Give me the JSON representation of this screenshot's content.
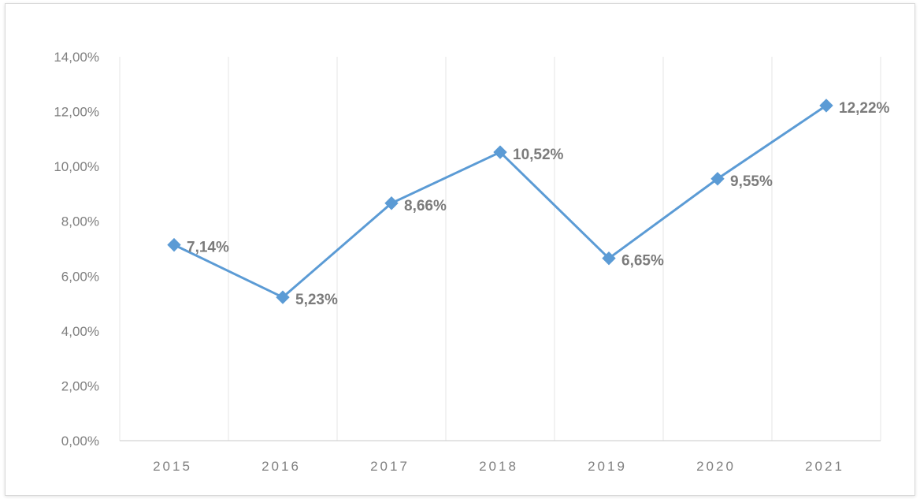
{
  "chart_data": {
    "type": "line",
    "categories": [
      "2015",
      "2016",
      "2017",
      "2018",
      "2019",
      "2020",
      "2021"
    ],
    "series": [
      {
        "values": [
          7.14,
          5.23,
          8.66,
          10.52,
          6.65,
          9.55,
          12.22
        ],
        "labels": [
          "7,14%",
          "5,23%",
          "8,66%",
          "10,52%",
          "6,65%",
          "9,55%",
          "12,22%"
        ],
        "color": "#5b9bd5",
        "marker": "diamond"
      }
    ],
    "y_ticks": [
      "0,00%",
      "2,00%",
      "4,00%",
      "6,00%",
      "8,00%",
      "10,00%",
      "12,00%",
      "14,00%"
    ],
    "ylim": [
      0,
      14
    ],
    "grid": "vertical",
    "title": "",
    "xlabel": "",
    "ylabel": ""
  }
}
